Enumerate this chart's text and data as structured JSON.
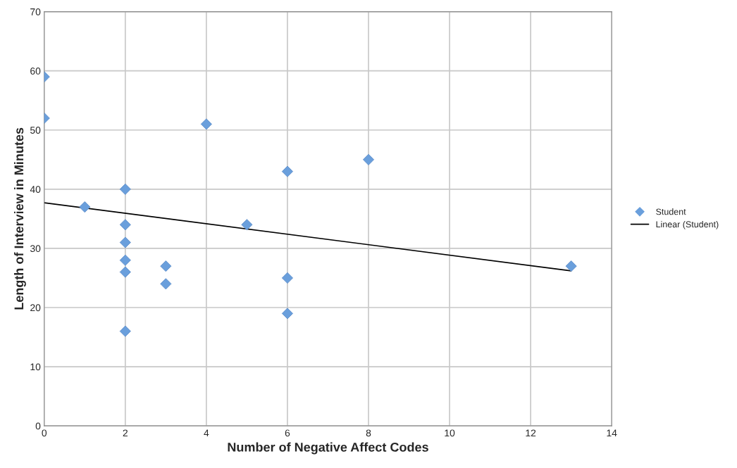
{
  "chart_data": {
    "type": "scatter",
    "xlabel": "Number of Negative Affect Codes",
    "ylabel": "Length of Interview in Minutes",
    "series": [
      {
        "name": "Student",
        "color": "#6a9fdc",
        "marker": "diamond",
        "x": [
          0,
          0,
          1,
          2,
          2,
          2,
          2,
          2,
          2,
          3,
          3,
          4,
          5,
          6,
          6,
          6,
          8,
          13
        ],
        "values": [
          59,
          52,
          37,
          40,
          34,
          31,
          28,
          26,
          16,
          27,
          24,
          51,
          34,
          43,
          25,
          19,
          45,
          27
        ]
      },
      {
        "name": "Linear (Student)",
        "type": "line",
        "color": "#000000",
        "marker": "none",
        "x": [
          0,
          13
        ],
        "values": [
          37.7,
          26.2
        ]
      }
    ],
    "xlim": [
      0,
      14
    ],
    "xticks": [
      0,
      2,
      4,
      6,
      8,
      10,
      12,
      14
    ],
    "ylim": [
      0,
      70
    ],
    "yticks": [
      0,
      10,
      20,
      30,
      40,
      50,
      60,
      70
    ],
    "grid": true,
    "legend": "right"
  }
}
